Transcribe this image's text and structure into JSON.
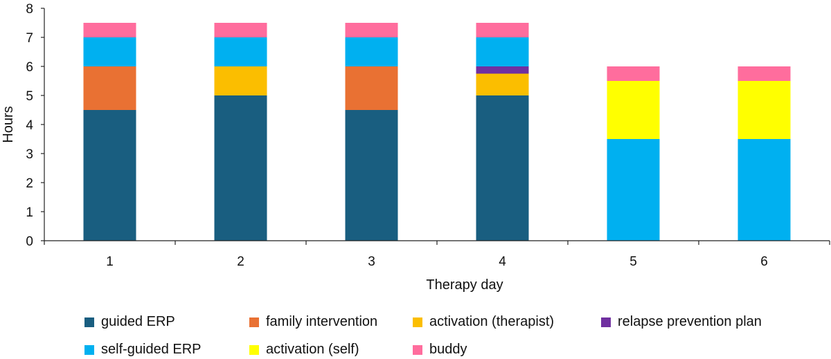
{
  "chart_data": {
    "type": "bar",
    "stacked": true,
    "title": "",
    "xlabel": "Therapy day",
    "ylabel": "Hours",
    "ylim": [
      0,
      8
    ],
    "yticks": [
      "0",
      "1",
      "2",
      "3",
      "4",
      "5",
      "6",
      "7",
      "8"
    ],
    "categories": [
      "1",
      "2",
      "3",
      "4",
      "5",
      "6"
    ],
    "series": [
      {
        "name": "guided ERP",
        "color": "#195e80",
        "values": [
          4.5,
          5,
          4.5,
          5,
          0,
          0
        ]
      },
      {
        "name": "family intervention",
        "color": "#e97133",
        "values": [
          1.5,
          0,
          1.5,
          0,
          0,
          0
        ]
      },
      {
        "name": "activation (therapist)",
        "color": "#fbbe00",
        "values": [
          0,
          1,
          0,
          0.75,
          0,
          0
        ]
      },
      {
        "name": "relapse prevention plan",
        "color": "#7030a0",
        "values": [
          0,
          0,
          0,
          0.25,
          0,
          0
        ]
      },
      {
        "name": "self-guided ERP",
        "color": "#00b0f0",
        "values": [
          1,
          1,
          1,
          1,
          3.5,
          3.5
        ]
      },
      {
        "name": "activation (self)",
        "color": "#ffff00",
        "values": [
          0,
          0,
          0,
          0,
          2,
          2
        ]
      },
      {
        "name": "buddy",
        "color": "#ff6d9d",
        "values": [
          0.5,
          0.5,
          0.5,
          0.5,
          0.5,
          0.5
        ]
      }
    ],
    "legend_position": "bottom"
  }
}
